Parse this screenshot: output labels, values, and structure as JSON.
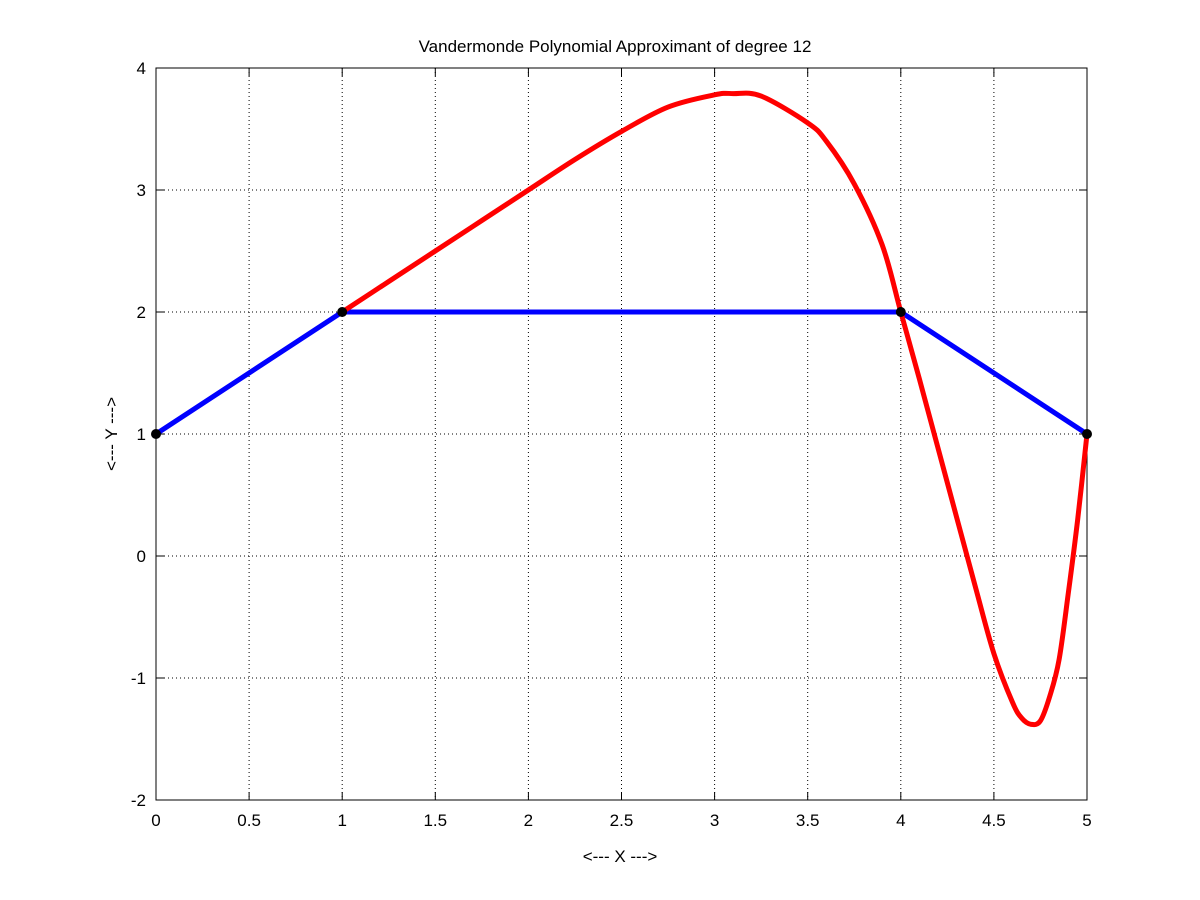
{
  "chart_data": {
    "type": "line",
    "title": "Vandermonde Polynomial Approximant of degree 12",
    "xlabel": "<--- X --->",
    "ylabel": "<--- Y --->",
    "xlim": [
      0,
      5
    ],
    "ylim": [
      -2,
      4
    ],
    "x_ticks": [
      0,
      0.5,
      1,
      1.5,
      2,
      2.5,
      3,
      3.5,
      4,
      4.5,
      5
    ],
    "x_tick_labels": [
      "0",
      "0.5",
      "1",
      "1.5",
      "2",
      "2.5",
      "3",
      "3.5",
      "4",
      "4.5",
      "5"
    ],
    "y_ticks": [
      -2,
      -1,
      0,
      1,
      2,
      3,
      4
    ],
    "y_tick_labels": [
      "-2",
      "-1",
      "0",
      "1",
      "2",
      "3",
      "4"
    ],
    "grid": true,
    "series": [
      {
        "kind": "polyline",
        "color": "#0000ff",
        "x": [
          0,
          1,
          4,
          5
        ],
        "y": [
          1,
          2,
          2,
          1
        ]
      },
      {
        "kind": "curve",
        "color": "#ff0000",
        "x": [
          1,
          1.25,
          1.5,
          1.75,
          2,
          2.25,
          2.5,
          2.75,
          3,
          3.1,
          3.25,
          3.5,
          3.6,
          3.75,
          3.9,
          4,
          4.1,
          4.25,
          4.4,
          4.5,
          4.6,
          4.65,
          4.7,
          4.75,
          4.8,
          4.85,
          4.9,
          4.95,
          5
        ],
        "y": [
          2,
          2.25,
          2.5,
          2.75,
          3,
          3.25,
          3.48,
          3.68,
          3.78,
          3.79,
          3.77,
          3.55,
          3.4,
          3.05,
          2.55,
          2,
          1.45,
          0.6,
          -0.25,
          -0.8,
          -1.2,
          -1.33,
          -1.38,
          -1.35,
          -1.15,
          -0.85,
          -0.3,
          0.3,
          1
        ]
      },
      {
        "kind": "markers",
        "color": "#000000",
        "x": [
          0,
          1,
          4,
          5
        ],
        "y": [
          1,
          2,
          2,
          1
        ]
      }
    ]
  }
}
